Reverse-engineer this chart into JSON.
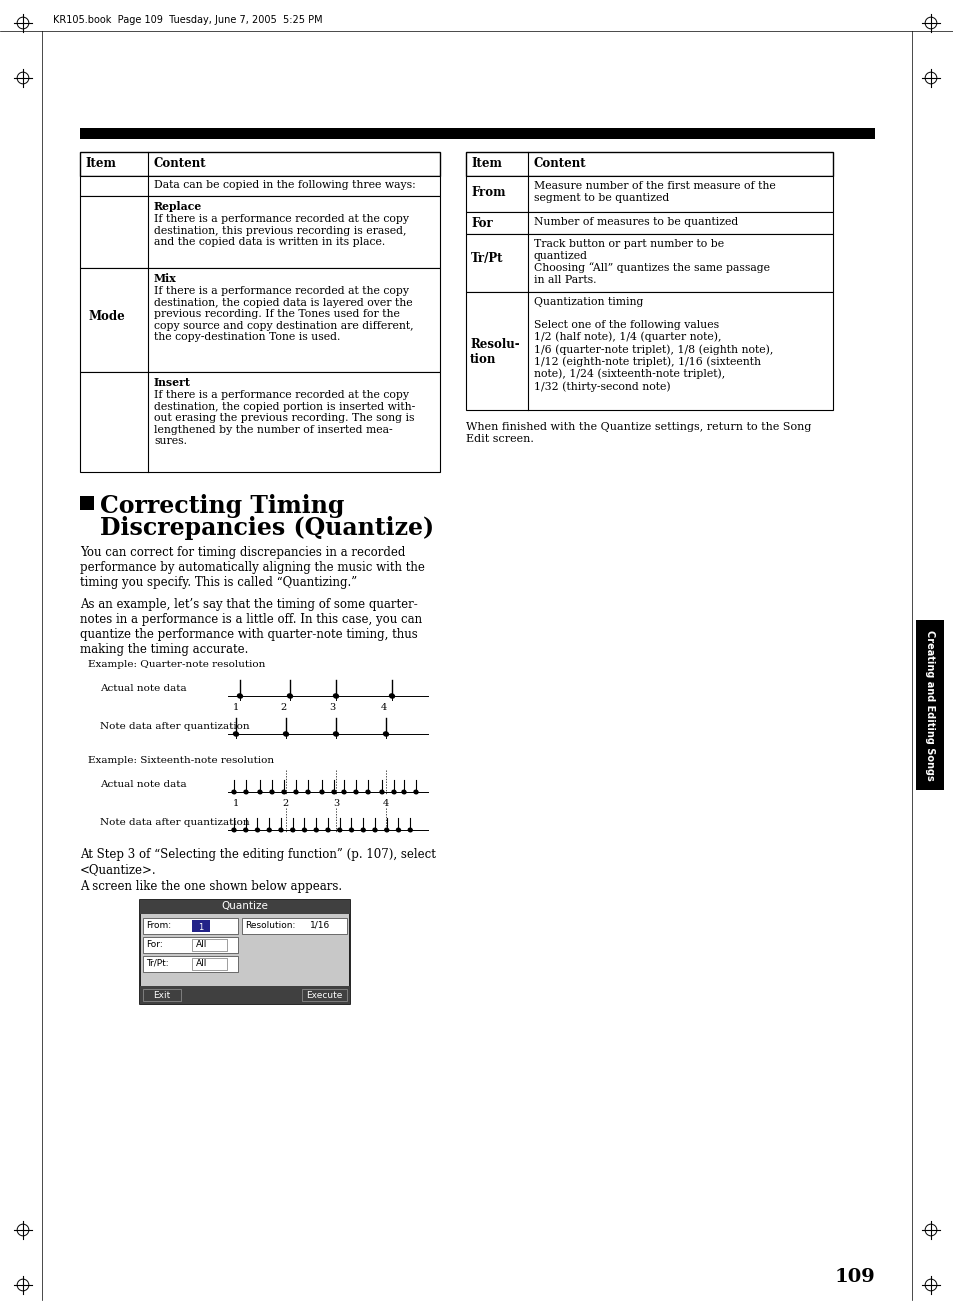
{
  "bg_color": "#ffffff",
  "page_header": "KR105.book  Page 109  Tuesday, June 7, 2005  5:25 PM",
  "page_number": "109",
  "sidebar_text": "Creating and Editing Songs",
  "section_title_line1": "Correcting Timing",
  "section_title_line2": "Discrepancies (Quantize)",
  "para1": "You can correct for timing discrepancies in a recorded\nperformance by automatically aligning the music with the\ntiming you specify. This is called “Quantizing.”",
  "para2": "As an example, let’s say that the timing of some quarter-\nnotes in a performance is a little off. In this case, you can\nquantize the performance with quarter-note timing, thus\nmaking the timing accurate.",
  "ex1_label": "Example: Quarter-note resolution",
  "ex1_actual": "Actual note data",
  "ex1_after": "Note data after quantization",
  "ex2_label": "Example: Sixteenth-note resolution",
  "ex2_actual": "Actual note data",
  "ex2_after": "Note data after quantization",
  "step_text1": "At Step 3 of “Selecting the editing function” (p. 107), select\n<Quantize>.",
  "step_text2": "A screen like the one shown below appears.",
  "finish_text": "When finished with the Quantize settings, return to the Song\nEdit screen."
}
